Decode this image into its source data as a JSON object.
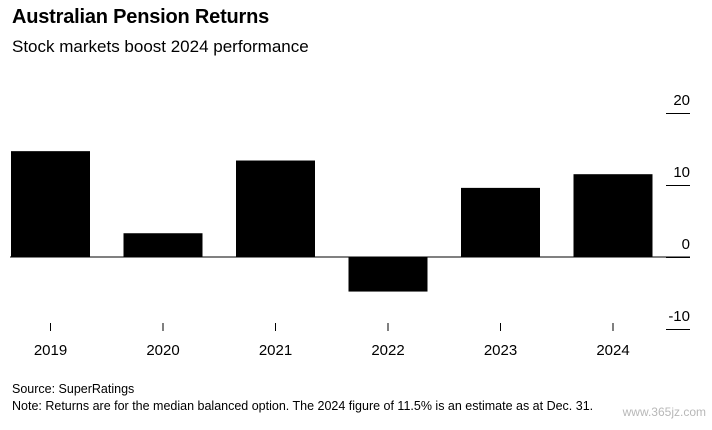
{
  "title": "Australian Pension Returns",
  "subtitle": "Stock markets boost 2024 performance",
  "chart_data": {
    "type": "bar",
    "categories": [
      "2019",
      "2020",
      "2021",
      "2022",
      "2023",
      "2024"
    ],
    "values": [
      14.7,
      3.3,
      13.4,
      -4.8,
      9.6,
      11.5
    ],
    "ylim": [
      -10,
      20
    ],
    "yticks": [
      "20",
      "10",
      "0",
      "-10"
    ],
    "ytick_values": [
      20,
      10,
      0,
      -10
    ],
    "bar_color": "#000000",
    "grid": false
  },
  "footer": {
    "source": "Source: SuperRatings",
    "note": "Note: Returns are for the median balanced option. The 2024 figure of 11.5% is an estimate as at Dec. 31."
  },
  "watermark": "www.365jz.com"
}
